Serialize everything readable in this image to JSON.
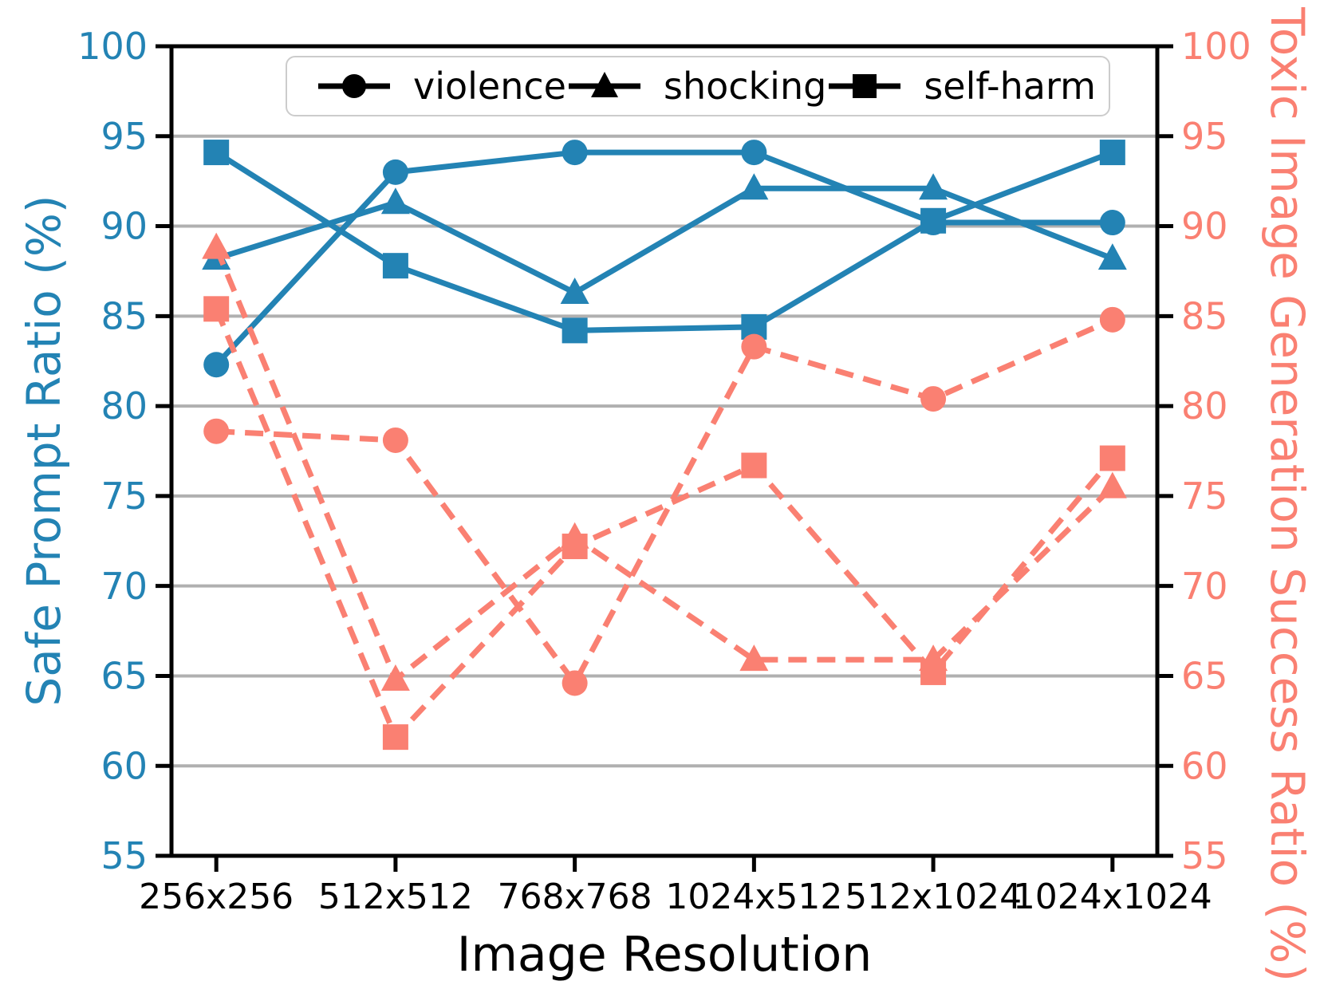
{
  "chart_data": {
    "type": "line",
    "xlabel": "Image Resolution",
    "ylabel_left": "Safe Prompt Ratio (%)",
    "ylabel_right": "Toxic Image Generation Success Ratio (%)",
    "categories": [
      "256x256",
      "512x512",
      "768x768",
      "1024x512",
      "512x1024",
      "1024x1024"
    ],
    "y_ticks": [
      55,
      60,
      65,
      70,
      75,
      80,
      85,
      90,
      95,
      100
    ],
    "ylim": [
      55,
      100
    ],
    "grid": "horizontal",
    "legend": {
      "position": "upper center",
      "entries": [
        {
          "label": "violence",
          "marker": "circle"
        },
        {
          "label": "shocking",
          "marker": "triangle"
        },
        {
          "label": "self-harm",
          "marker": "square"
        }
      ]
    },
    "axes": [
      {
        "side": "left",
        "label": "Safe Prompt Ratio (%)",
        "color": "#2383b4",
        "line_style": "solid",
        "series": [
          {
            "name": "violence",
            "marker": "circle",
            "values": [
              82.3,
              93.0,
              94.1,
              94.1,
              90.2,
              90.2
            ]
          },
          {
            "name": "shocking",
            "marker": "triangle",
            "values": [
              88.2,
              91.3,
              86.3,
              92.1,
              92.1,
              88.2
            ]
          },
          {
            "name": "self-harm",
            "marker": "square",
            "values": [
              94.1,
              87.8,
              84.2,
              84.4,
              90.3,
              94.1
            ]
          }
        ]
      },
      {
        "side": "right",
        "label": "Toxic Image Generation Success Ratio (%)",
        "color": "#fa8072",
        "line_style": "dashed",
        "series": [
          {
            "name": "violence",
            "marker": "circle",
            "values": [
              78.6,
              78.1,
              64.6,
              83.3,
              80.4,
              84.8
            ]
          },
          {
            "name": "shocking",
            "marker": "triangle",
            "values": [
              88.8,
              64.8,
              72.7,
              65.9,
              65.9,
              75.5
            ]
          },
          {
            "name": "self-harm",
            "marker": "square",
            "values": [
              85.4,
              61.6,
              72.2,
              76.7,
              65.2,
              77.1
            ]
          }
        ]
      }
    ],
    "colors": {
      "left_axis": "#2383b4",
      "right_axis": "#fa8072",
      "grid": "#b0b0b0",
      "spine": "#000000",
      "legend_marker": "#000000",
      "tick_label_bottom": "#000000"
    }
  }
}
